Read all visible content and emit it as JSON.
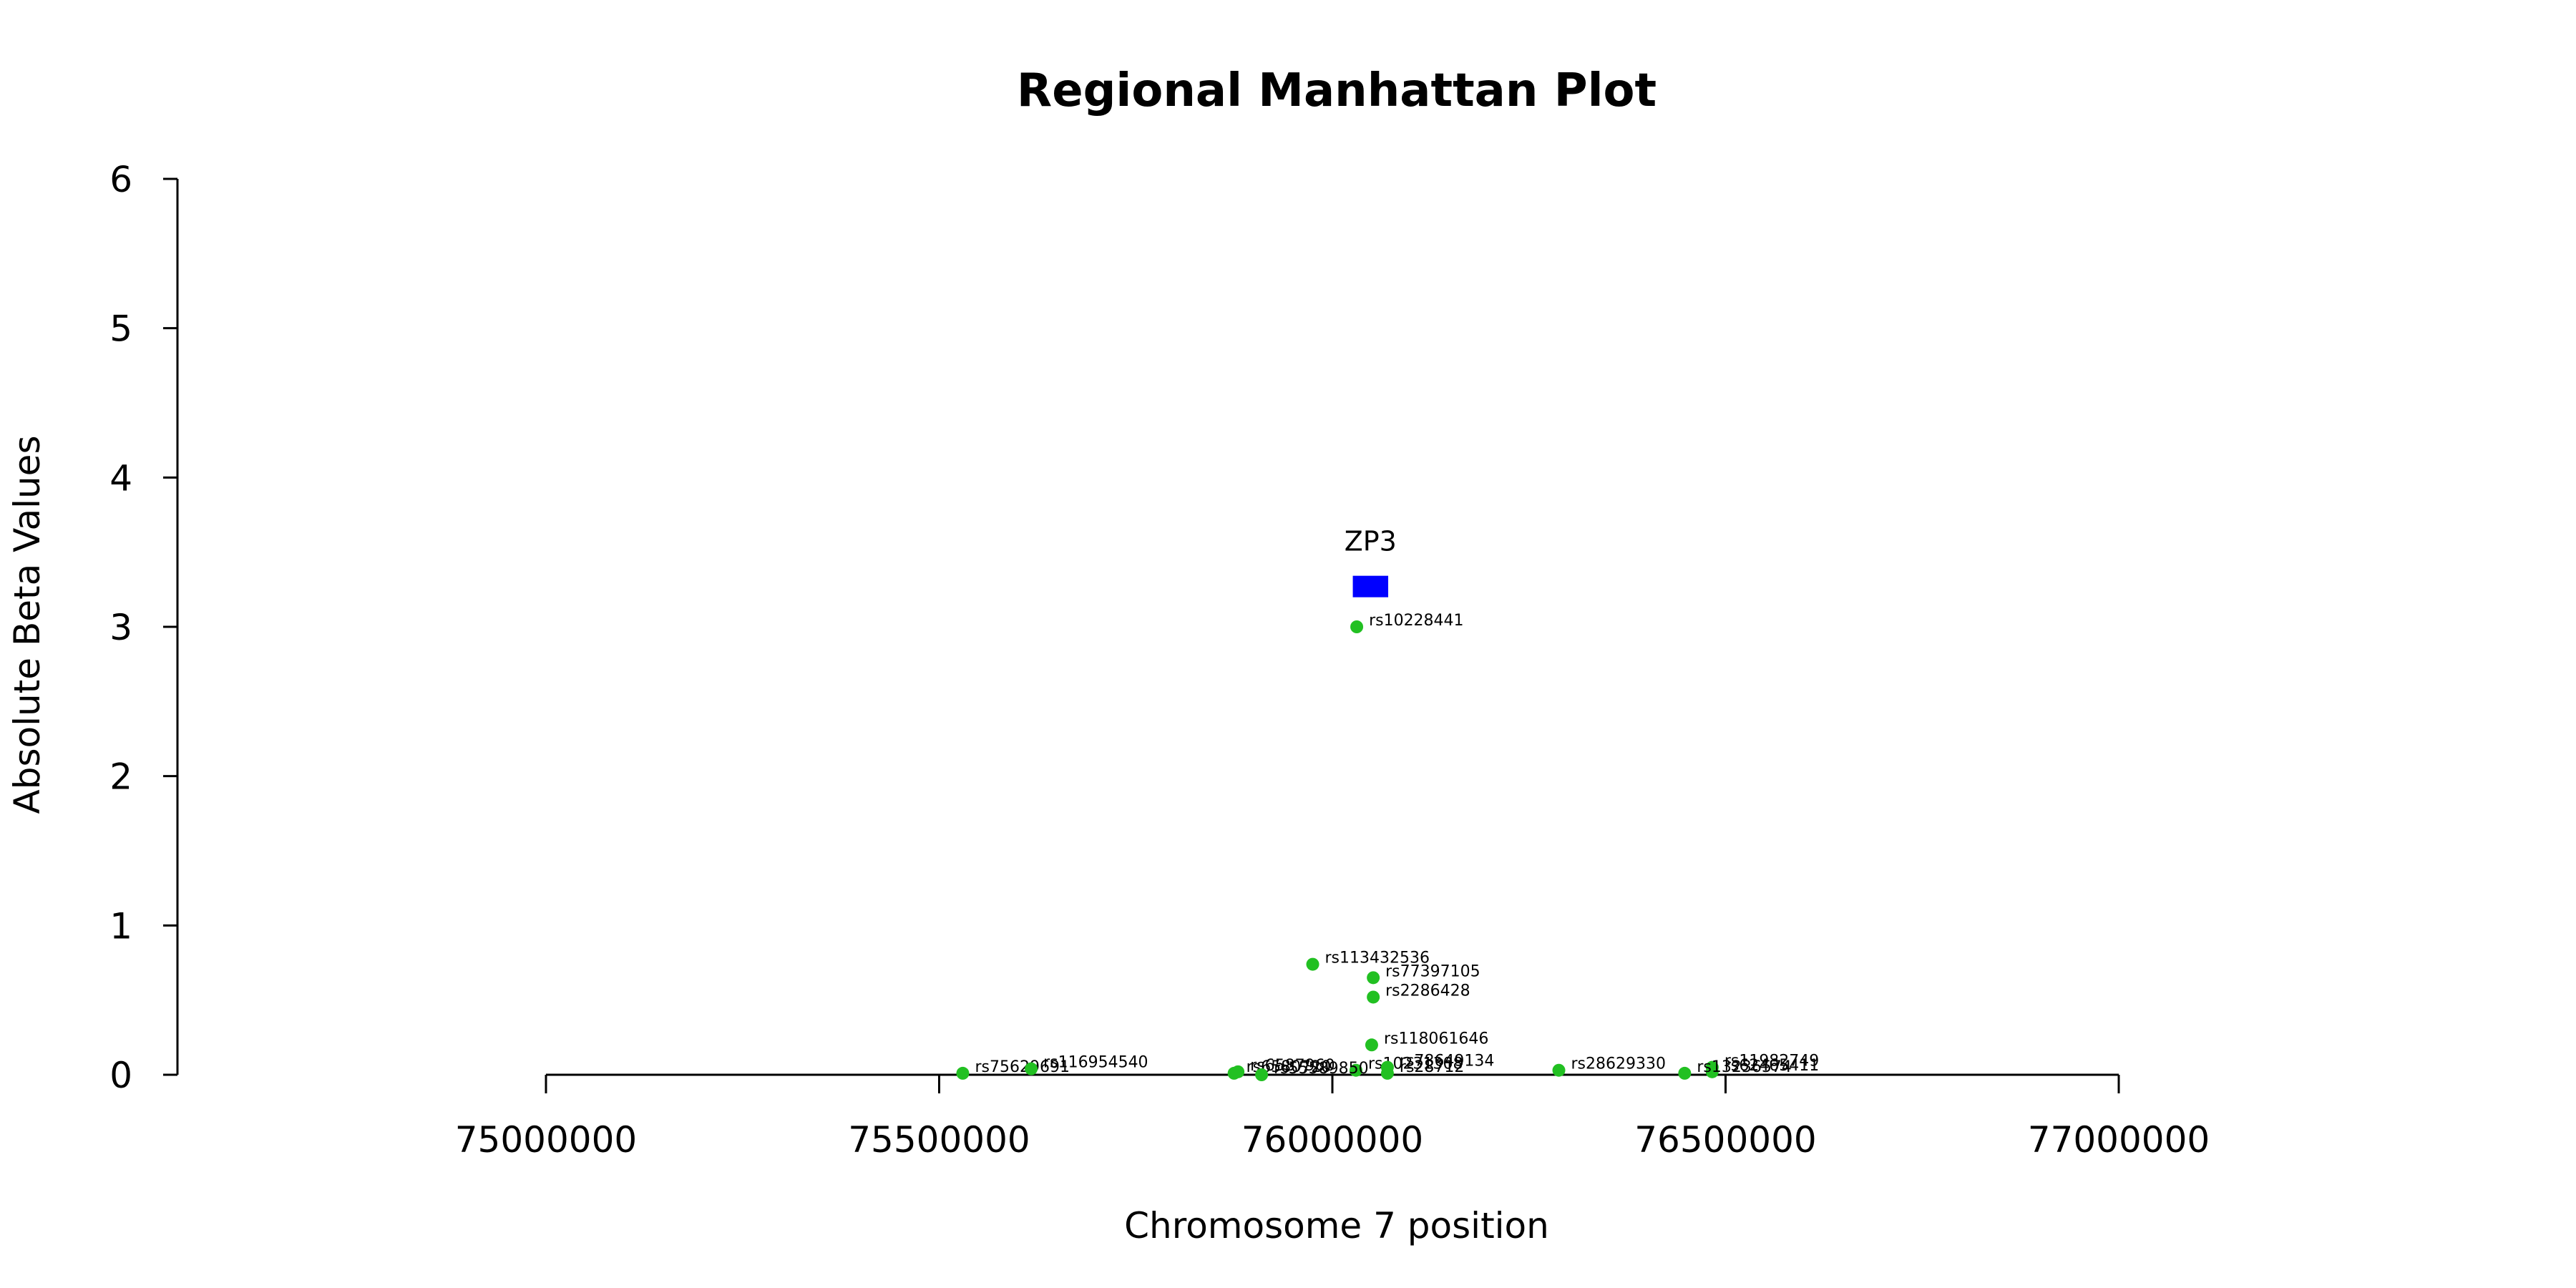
{
  "chart_data": {
    "type": "scatter",
    "title": "Regional Manhattan Plot",
    "xlabel": "Chromosome 7 position",
    "ylabel": "Absolute Beta Values",
    "xlim": [
      75000000,
      77000000
    ],
    "ylim": [
      0,
      6
    ],
    "x_ticks": [
      75000000,
      75500000,
      76000000,
      76500000,
      77000000
    ],
    "x_tick_labels": [
      "75000000",
      "75500000",
      "76000000",
      "76500000",
      "77000000"
    ],
    "y_ticks": [
      0,
      1,
      2,
      3,
      4,
      5,
      6
    ],
    "y_tick_labels": [
      "0",
      "1",
      "2",
      "3",
      "4",
      "5",
      "6"
    ],
    "grid": false,
    "point_color": "#22c022",
    "series": [
      {
        "points": [
          {
            "label": "rs10228441",
            "x": 76031000,
            "y": 3.0
          },
          {
            "label": "rs113432536",
            "x": 75975000,
            "y": 0.74
          },
          {
            "label": "rs77397105",
            "x": 76052000,
            "y": 0.65
          },
          {
            "label": "rs2286428",
            "x": 76052000,
            "y": 0.52
          },
          {
            "label": "rs118061646",
            "x": 76050000,
            "y": 0.2
          },
          {
            "label": "rs10231308",
            "x": 76030000,
            "y": 0.03
          },
          {
            "label": "rs78649134",
            "x": 76070000,
            "y": 0.05
          },
          {
            "label": "rs28712",
            "x": 76070000,
            "y": 0.01
          },
          {
            "label": "rs28629330",
            "x": 76288000,
            "y": 0.03
          },
          {
            "label": "rs11982749",
            "x": 76483000,
            "y": 0.05
          },
          {
            "label": "rs62465411",
            "x": 76483000,
            "y": 0.02
          },
          {
            "label": "rs13236574",
            "x": 76448000,
            "y": 0.01
          },
          {
            "label": "rs75629691",
            "x": 75530000,
            "y": 0.01
          },
          {
            "label": "rs116954540",
            "x": 75617000,
            "y": 0.04
          },
          {
            "label": "rs6587960",
            "x": 75880000,
            "y": 0.02
          },
          {
            "label": "rs6580720",
            "x": 75875000,
            "y": 0.01
          },
          {
            "label": "rs55589850",
            "x": 75910000,
            "y": 0.0
          }
        ]
      }
    ],
    "genes": [
      {
        "name": "ZP3",
        "start": 76026000,
        "end": 76071000,
        "y": 3.27,
        "color": "#0000ff"
      }
    ]
  }
}
